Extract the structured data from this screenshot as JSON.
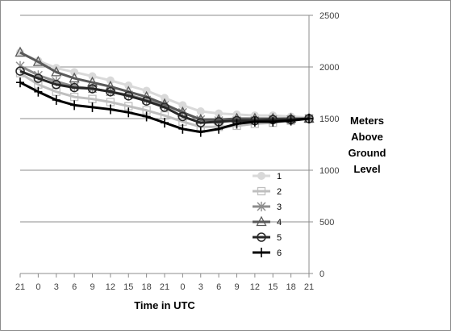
{
  "chart_data": {
    "type": "line",
    "title": "",
    "xlabel": "Time in UTC",
    "ylabel": "Meters Above Ground Level",
    "ylabel_lines": [
      "Meters",
      "Above",
      "Ground",
      "Level"
    ],
    "x": [
      "21",
      "0",
      "3",
      "6",
      "9",
      "12",
      "15",
      "18",
      "21",
      "0",
      "3",
      "6",
      "9",
      "12",
      "15",
      "18",
      "21"
    ],
    "ylim": [
      0,
      2500
    ],
    "yticks": [
      0,
      500,
      1000,
      1500,
      2000,
      2500
    ],
    "y_axis_side": "right",
    "grid": true,
    "legend_position": "center-right",
    "series": [
      {
        "name": "1",
        "color": "#d9d9d9",
        "marker": "circle-filled",
        "values": [
          2140,
          2060,
          1990,
          1950,
          1910,
          1870,
          1820,
          1770,
          1700,
          1630,
          1570,
          1550,
          1540,
          1530,
          1530,
          1520,
          1510
        ]
      },
      {
        "name": "2",
        "color": "#bfbfbf",
        "marker": "square-open",
        "values": [
          1940,
          1830,
          1760,
          1710,
          1690,
          1660,
          1620,
          1580,
          1530,
          1470,
          1420,
          1420,
          1430,
          1450,
          1460,
          1480,
          1500
        ]
      },
      {
        "name": "3",
        "color": "#8c8c8c",
        "marker": "star",
        "values": [
          2010,
          1920,
          1860,
          1810,
          1790,
          1760,
          1730,
          1680,
          1630,
          1560,
          1490,
          1480,
          1480,
          1480,
          1490,
          1490,
          1500
        ]
      },
      {
        "name": "4",
        "color": "#595959",
        "marker": "triangle-open",
        "values": [
          2140,
          2050,
          1950,
          1890,
          1850,
          1810,
          1760,
          1710,
          1640,
          1560,
          1490,
          1490,
          1500,
          1500,
          1500,
          1500,
          1500
        ]
      },
      {
        "name": "5",
        "color": "#262626",
        "marker": "circle-open",
        "values": [
          1960,
          1890,
          1830,
          1800,
          1790,
          1760,
          1720,
          1670,
          1610,
          1520,
          1460,
          1470,
          1480,
          1480,
          1490,
          1490,
          1500
        ]
      },
      {
        "name": "6",
        "color": "#000000",
        "marker": "plus",
        "values": [
          1850,
          1760,
          1680,
          1630,
          1610,
          1590,
          1560,
          1520,
          1460,
          1400,
          1370,
          1400,
          1450,
          1470,
          1470,
          1480,
          1500
        ]
      }
    ]
  }
}
